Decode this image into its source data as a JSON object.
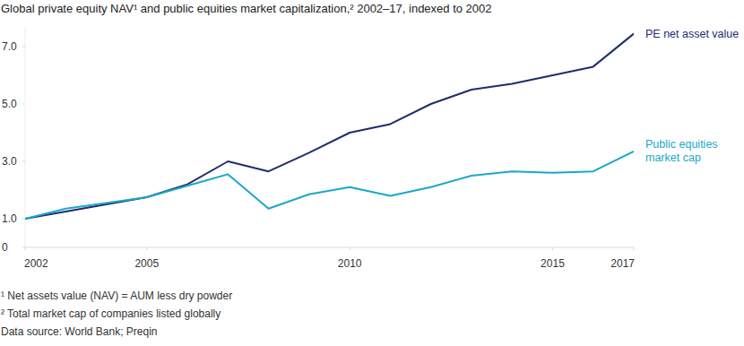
{
  "chart_data": {
    "type": "line",
    "title": "Global private equity NAV¹ and public equities market capitalization,² 2002–17, indexed to 2002",
    "annotations": [
      "¹ Net assets value (NAV) = AUM less dry powder",
      "² Total market cap of companies listed globally",
      "Data source: World Bank; Preqin"
    ],
    "x": [
      2002,
      2003,
      2004,
      2005,
      2006,
      2007,
      2008,
      2009,
      2010,
      2011,
      2012,
      2013,
      2014,
      2015,
      2016,
      2017
    ],
    "xlim": [
      2002,
      2017
    ],
    "xticks": [
      2002,
      2005,
      2010,
      2015,
      2017
    ],
    "ylim": [
      0,
      7.7
    ],
    "yticks": [
      0,
      {
        "value": 1,
        "label": "1.0"
      },
      {
        "value": 3,
        "label": "3.0"
      },
      {
        "value": 5,
        "label": "5.0"
      },
      {
        "value": 7,
        "label": "7.0"
      }
    ],
    "grid": false,
    "series": [
      {
        "name": "PE net asset value",
        "color": "#1f2d6e",
        "values": [
          1.0,
          1.25,
          1.5,
          1.75,
          2.2,
          3.0,
          2.65,
          3.3,
          4.0,
          4.3,
          5.0,
          5.5,
          5.7,
          6.0,
          6.3,
          7.45
        ]
      },
      {
        "name": "Public equities market cap",
        "color": "#1aa8c9",
        "values": [
          1.0,
          1.35,
          1.55,
          1.75,
          2.15,
          2.55,
          1.35,
          1.85,
          2.1,
          1.8,
          2.1,
          2.5,
          2.65,
          2.6,
          2.65,
          3.35
        ]
      }
    ]
  }
}
